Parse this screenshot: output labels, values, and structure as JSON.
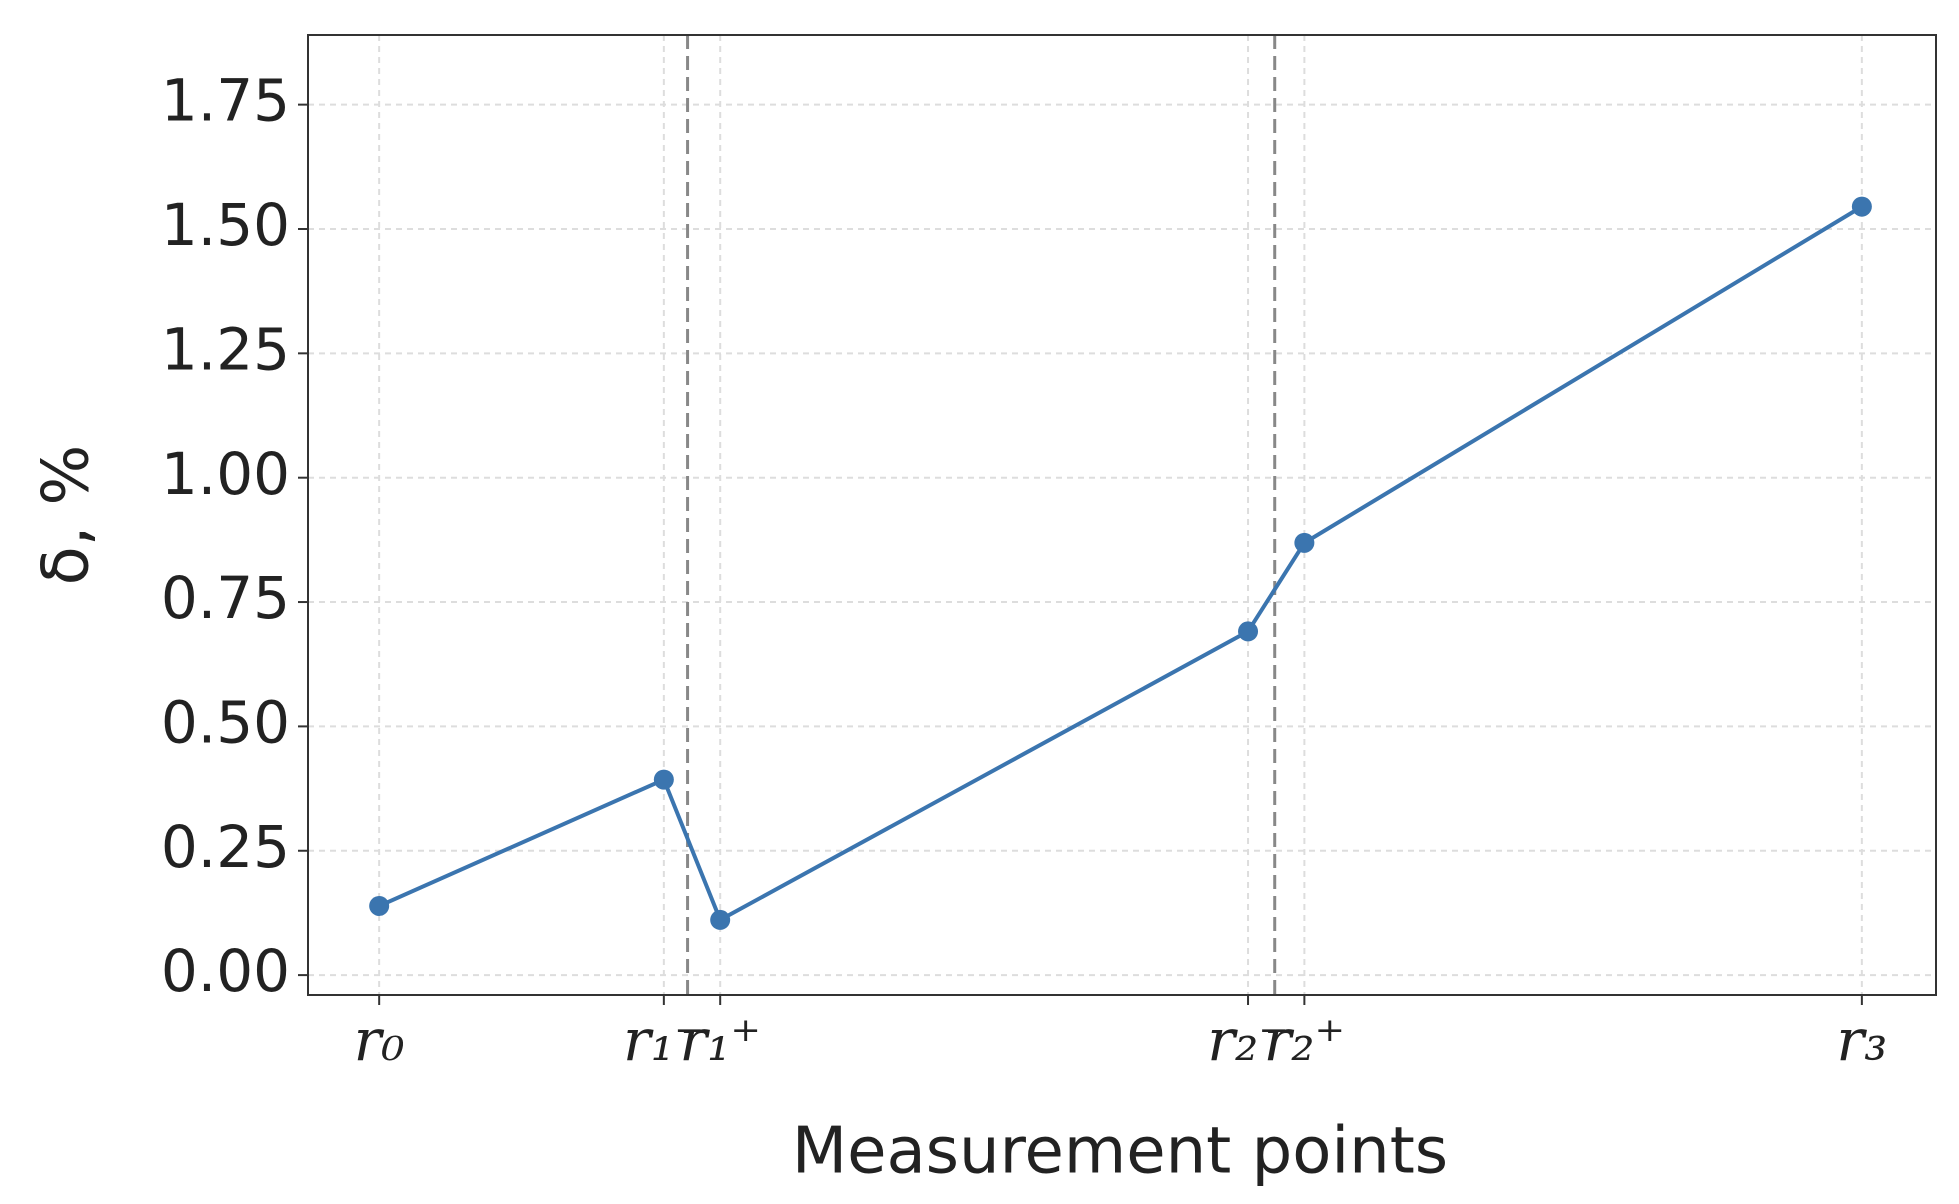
{
  "chart_data": {
    "type": "line",
    "x_label": "Measurement points",
    "y_label": "δ, %",
    "x": [
      0,
      0.96,
      1.15,
      2.93,
      3.12,
      5
    ],
    "series": [
      {
        "name": "δ",
        "color": "#3b75af",
        "values": [
          0.139,
          0.393,
          0.111,
          0.691,
          0.869,
          1.545
        ]
      }
    ],
    "xlim": [
      -0.24,
      5.25
    ],
    "xticks": [
      {
        "value": 0,
        "label": "r₀"
      },
      {
        "value": 0.96,
        "label": "r₁⁻"
      },
      {
        "value": 1.15,
        "label": "r₁⁺"
      },
      {
        "value": 2.93,
        "label": "r₂⁻"
      },
      {
        "value": 3.12,
        "label": "r₂⁺"
      },
      {
        "value": 5,
        "label": "r₃"
      }
    ],
    "ylim": [
      -0.04,
      1.89
    ],
    "yticks": [
      {
        "value": 0,
        "label": "0.00"
      },
      {
        "value": 0.25,
        "label": "0.25"
      },
      {
        "value": 0.5,
        "label": "0.50"
      },
      {
        "value": 0.75,
        "label": "0.75"
      },
      {
        "value": 1,
        "label": "1.00"
      },
      {
        "value": 1.25,
        "label": "1.25"
      },
      {
        "value": 1.5,
        "label": "1.50"
      },
      {
        "value": 1.75,
        "label": "1.75"
      }
    ],
    "vlines": [
      1.04,
      3.02
    ],
    "grid": true
  }
}
